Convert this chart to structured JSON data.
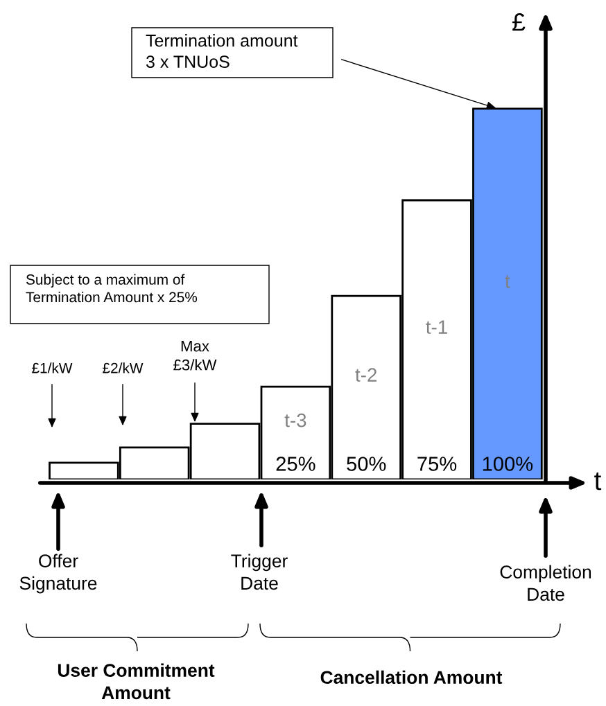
{
  "chart_data": {
    "type": "bar",
    "categories": [
      null,
      null,
      null,
      "t-3",
      "t-2",
      "t-1",
      "t"
    ],
    "values": [
      4.5,
      8.6,
      15,
      25,
      49.5,
      75.3,
      100
    ],
    "colors": [
      "#ffffff",
      "#ffffff",
      "#ffffff",
      "#ffffff",
      "#ffffff",
      "#ffffff",
      "#6699ff"
    ],
    "value_labels": [
      null,
      null,
      null,
      "25%",
      "50%",
      "75%",
      "100%"
    ],
    "xlabel": "t",
    "ylabel": "£",
    "annotations": [
      "Termination amount\n3 x TNUoS",
      "Subject to a maximum of\nTermination Amount x 25%",
      "£1/kW",
      "£2/kW",
      "Max\n£3/kW",
      "Offer\nSignature",
      "Trigger\nDate",
      "Completion\nDate",
      "User Commitment\nAmount",
      "Cancellation Amount"
    ]
  }
}
